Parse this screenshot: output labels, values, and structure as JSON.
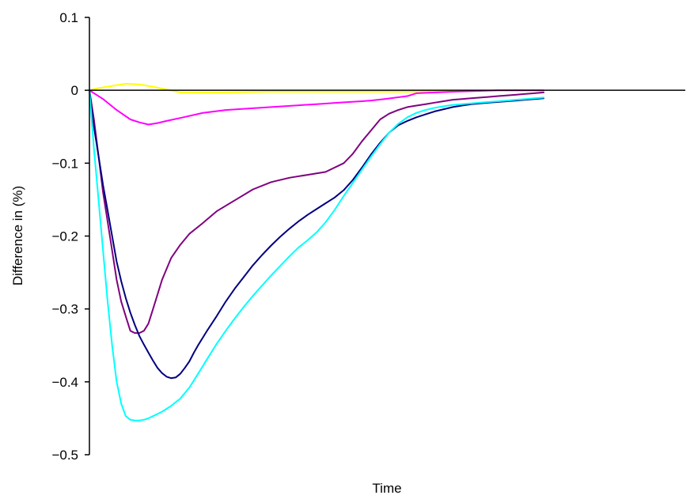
{
  "chart_data": {
    "type": "line",
    "title": "",
    "xlabel": "Time",
    "ylabel": "Difference in (%)",
    "ylim": [
      -0.5,
      0.1
    ],
    "yticks": [
      "0.1",
      "0",
      "−0.1",
      "−0.2",
      "−0.3",
      "−0.4",
      "−0.5"
    ],
    "ytick_values": [
      0.1,
      0,
      -0.1,
      -0.2,
      -0.3,
      -0.4,
      -0.5
    ],
    "xlim": [
      0,
      100
    ],
    "grid": false,
    "series": [
      {
        "color": "#ffff00",
        "x": [
          0,
          2,
          5,
          8,
          11,
          14,
          17,
          20,
          30,
          40,
          50,
          60,
          70,
          80,
          90,
          100
        ],
        "y": [
          0,
          0.003,
          0.006,
          0.009,
          0.008,
          0.005,
          0.001,
          -0.003,
          -0.003,
          -0.002,
          -0.002,
          -0.002,
          -0.002,
          -0.001,
          0,
          0
        ]
      },
      {
        "color": "#ff00ff",
        "x": [
          0,
          3,
          6,
          9,
          11,
          13,
          15,
          17,
          20,
          25,
          30,
          40,
          50,
          55,
          60,
          62,
          65,
          70,
          72,
          80,
          90,
          100
        ],
        "y": [
          0,
          -0.012,
          -0.027,
          -0.04,
          -0.044,
          -0.047,
          -0.045,
          -0.042,
          -0.038,
          -0.031,
          -0.027,
          -0.023,
          -0.019,
          -0.017,
          -0.015,
          -0.014,
          -0.012,
          -0.008,
          -0.004,
          -0.002,
          0,
          0
        ]
      },
      {
        "color": "#800080",
        "x": [
          0,
          1,
          2,
          3,
          4,
          5,
          6,
          7,
          8,
          9,
          10,
          11,
          12,
          13,
          14,
          16,
          18,
          20,
          22,
          25,
          28,
          32,
          36,
          40,
          44,
          48,
          52,
          56,
          58,
          60,
          62,
          64,
          66,
          68,
          70,
          72,
          74,
          76,
          78,
          80,
          82,
          84,
          86,
          88,
          90,
          92,
          94,
          96,
          98,
          100
        ],
        "y": [
          0,
          -0.04,
          -0.09,
          -0.14,
          -0.18,
          -0.22,
          -0.26,
          -0.29,
          -0.31,
          -0.33,
          -0.333,
          -0.333,
          -0.33,
          -0.32,
          -0.3,
          -0.26,
          -0.23,
          -0.212,
          -0.197,
          -0.182,
          -0.166,
          -0.151,
          -0.136,
          -0.126,
          -0.12,
          -0.116,
          -0.112,
          -0.1,
          -0.087,
          -0.07,
          -0.055,
          -0.04,
          -0.032,
          -0.027,
          -0.023,
          -0.021,
          -0.019,
          -0.017,
          -0.015,
          -0.013,
          -0.012,
          -0.011,
          -0.01,
          -0.009,
          -0.008,
          -0.007,
          -0.006,
          -0.005,
          -0.004,
          -0.003
        ]
      },
      {
        "color": "#000080",
        "x": [
          0,
          1,
          2,
          3,
          4,
          5,
          6,
          7,
          8,
          9,
          10,
          11,
          12,
          13,
          14,
          15,
          16,
          17,
          18,
          19,
          20,
          21,
          22,
          23,
          24,
          25,
          26,
          28,
          30,
          32,
          34,
          36,
          38,
          40,
          42,
          44,
          46,
          48,
          50,
          52,
          54,
          56,
          58,
          60,
          62,
          64,
          66,
          68,
          70,
          72,
          74,
          76,
          78,
          80,
          82,
          84,
          86,
          88,
          90,
          92,
          94,
          96,
          98,
          100
        ],
        "y": [
          0,
          -0.05,
          -0.09,
          -0.13,
          -0.165,
          -0.2,
          -0.235,
          -0.262,
          -0.285,
          -0.305,
          -0.322,
          -0.337,
          -0.349,
          -0.36,
          -0.371,
          -0.381,
          -0.388,
          -0.393,
          -0.395,
          -0.394,
          -0.389,
          -0.381,
          -0.372,
          -0.36,
          -0.349,
          -0.339,
          -0.329,
          -0.31,
          -0.29,
          -0.272,
          -0.256,
          -0.24,
          -0.226,
          -0.213,
          -0.201,
          -0.19,
          -0.18,
          -0.171,
          -0.163,
          -0.155,
          -0.147,
          -0.137,
          -0.123,
          -0.106,
          -0.088,
          -0.072,
          -0.058,
          -0.048,
          -0.042,
          -0.037,
          -0.033,
          -0.029,
          -0.026,
          -0.023,
          -0.021,
          -0.019,
          -0.018,
          -0.017,
          -0.016,
          -0.015,
          -0.014,
          -0.013,
          -0.012,
          -0.011
        ]
      },
      {
        "color": "#00ffff",
        "x": [
          0,
          1,
          2,
          3,
          4,
          5,
          6,
          7,
          8,
          9,
          10,
          11,
          12,
          13,
          14,
          16,
          18,
          20,
          22,
          24,
          26,
          28,
          30,
          32,
          34,
          36,
          38,
          40,
          42,
          44,
          46,
          48,
          50,
          52,
          54,
          56,
          58,
          60,
          62,
          64,
          66,
          68,
          70,
          72,
          74,
          76,
          78,
          80,
          82,
          84,
          86,
          88,
          90,
          92,
          94,
          96,
          98,
          100
        ],
        "y": [
          0,
          -0.08,
          -0.15,
          -0.22,
          -0.29,
          -0.35,
          -0.4,
          -0.43,
          -0.447,
          -0.452,
          -0.453,
          -0.453,
          -0.452,
          -0.45,
          -0.447,
          -0.441,
          -0.433,
          -0.423,
          -0.408,
          -0.388,
          -0.368,
          -0.348,
          -0.33,
          -0.313,
          -0.297,
          -0.282,
          -0.268,
          -0.254,
          -0.241,
          -0.228,
          -0.216,
          -0.206,
          -0.195,
          -0.181,
          -0.164,
          -0.145,
          -0.127,
          -0.109,
          -0.091,
          -0.074,
          -0.058,
          -0.046,
          -0.037,
          -0.031,
          -0.027,
          -0.024,
          -0.022,
          -0.02,
          -0.019,
          -0.018,
          -0.017,
          -0.016,
          -0.015,
          -0.014,
          -0.013,
          -0.012,
          -0.011,
          -0.01
        ]
      }
    ]
  }
}
